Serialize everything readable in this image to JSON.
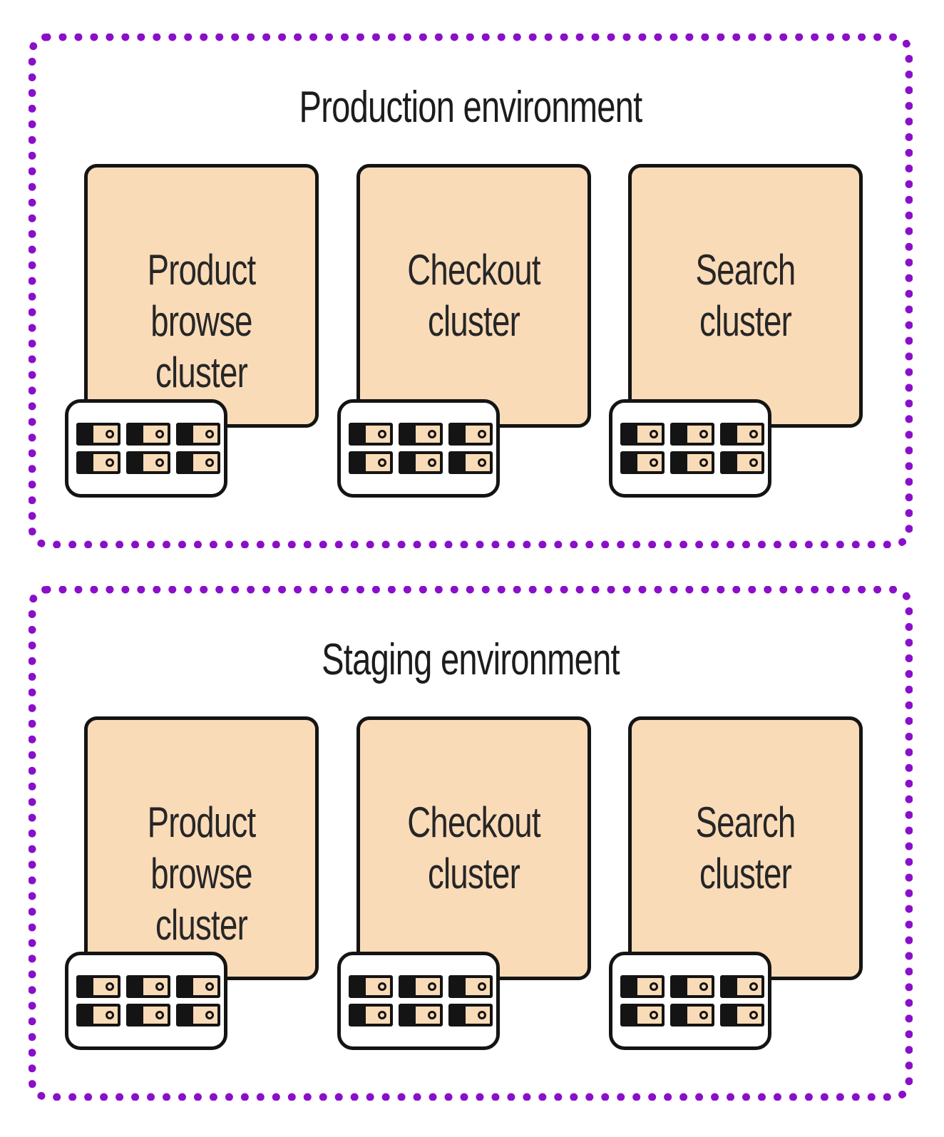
{
  "diagram": {
    "environments": [
      {
        "title": "Production environment",
        "clusters": [
          {
            "label": "Product\nbrowse cluster"
          },
          {
            "label": "Checkout\ncluster"
          },
          {
            "label": "Search\ncluster"
          }
        ]
      },
      {
        "title": "Staging environment",
        "clusters": [
          {
            "label": "Product\nbrowse cluster"
          },
          {
            "label": "Checkout\ncluster"
          },
          {
            "label": "Search\ncluster"
          }
        ]
      }
    ],
    "colors": {
      "environment_border": "#8a0fc9",
      "cluster_fill": "#fadbb8",
      "outline": "#141414",
      "text": "#262626"
    },
    "icons": [
      "server-rack-icon",
      "server-unit-icon"
    ]
  }
}
